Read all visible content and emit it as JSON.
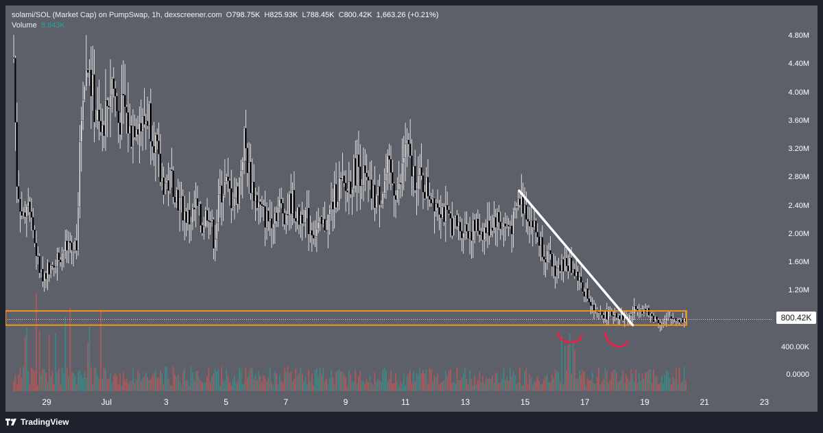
{
  "header": {
    "symbol": "solami/SOL (Market Cap) on PumpSwap, 1h, dexscreener.com",
    "open_label": "O",
    "open": "798.75K",
    "high_label": "H",
    "high": "825.93K",
    "low_label": "L",
    "low": "788.45K",
    "close_label": "C",
    "close": "800.42K",
    "change": "1,663.26 (+0.21%)",
    "volume_label": "Volume",
    "volume": "8.843K"
  },
  "price_tag": "800.42K",
  "footer": {
    "brand": "TradingView",
    "icon": "tradingview-logo-icon"
  },
  "colors": {
    "background": "#5d5f69",
    "candle": "#000000",
    "candle_border": "#ffffff",
    "volume_up": "#26a69a",
    "volume_down": "#ef5350",
    "zone": "#f7931a",
    "trendline": "#ffffff",
    "arcs": "#ff1744"
  },
  "chart_data": {
    "type": "candlestick",
    "y_ticks": [
      "4.80M",
      "4.40M",
      "4.00M",
      "3.60M",
      "3.20M",
      "2.80M",
      "2.40M",
      "2.00M",
      "1.60M",
      "1.20M",
      "400.00K",
      "0.0000"
    ],
    "x_ticks": [
      "29",
      "Jul",
      "3",
      "5",
      "7",
      "9",
      "11",
      "13",
      "15",
      "17",
      "19",
      "21",
      "23"
    ],
    "ylim": [
      0,
      4.95
    ],
    "y_unit": "M",
    "price_path": [
      [
        27.9,
        4.5
      ],
      [
        28.0,
        2.8
      ],
      [
        28.2,
        2.2
      ],
      [
        28.4,
        2.6
      ],
      [
        28.6,
        1.9
      ],
      [
        28.8,
        1.4
      ],
      [
        29.0,
        1.5
      ],
      [
        29.2,
        1.6
      ],
      [
        29.4,
        1.7
      ],
      [
        29.6,
        1.8
      ],
      [
        29.8,
        1.75
      ],
      [
        30.0,
        1.9
      ],
      [
        30.2,
        4.1
      ],
      [
        30.4,
        4.4
      ],
      [
        30.6,
        3.8
      ],
      [
        30.8,
        3.4
      ],
      [
        31.0,
        3.8
      ],
      [
        31.2,
        4.2
      ],
      [
        31.4,
        3.6
      ],
      [
        31.6,
        3.8
      ],
      [
        31.8,
        3.4
      ],
      [
        32.0,
        3.7
      ],
      [
        32.2,
        3.5
      ],
      [
        32.4,
        3.75
      ],
      [
        32.6,
        3.4
      ],
      [
        32.8,
        2.8
      ],
      [
        33.0,
        2.7
      ],
      [
        33.2,
        2.8
      ],
      [
        33.4,
        2.5
      ],
      [
        33.6,
        2.3
      ],
      [
        33.8,
        2.2
      ],
      [
        34.0,
        2.4
      ],
      [
        34.2,
        2.1
      ],
      [
        34.4,
        2.4
      ],
      [
        34.6,
        1.9
      ],
      [
        34.8,
        2.6
      ],
      [
        35.0,
        2.7
      ],
      [
        35.2,
        2.5
      ],
      [
        35.4,
        2.6
      ],
      [
        35.6,
        3.35
      ],
      [
        35.8,
        2.8
      ],
      [
        36.0,
        2.5
      ],
      [
        36.2,
        2.3
      ],
      [
        36.4,
        2.2
      ],
      [
        36.6,
        2.3
      ],
      [
        36.8,
        2.4
      ],
      [
        37.0,
        2.3
      ],
      [
        37.2,
        2.5
      ],
      [
        37.4,
        2.2
      ],
      [
        37.6,
        2.35
      ],
      [
        37.8,
        2.1
      ],
      [
        38.0,
        2.05
      ],
      [
        38.2,
        2.1
      ],
      [
        38.4,
        2.2
      ],
      [
        38.6,
        2.5
      ],
      [
        38.8,
        2.7
      ],
      [
        39.0,
        2.6
      ],
      [
        39.2,
        2.8
      ],
      [
        39.4,
        3.0
      ],
      [
        39.6,
        2.8
      ],
      [
        39.8,
        2.6
      ],
      [
        40.0,
        2.5
      ],
      [
        40.2,
        2.6
      ],
      [
        40.4,
        2.9
      ],
      [
        40.6,
        2.7
      ],
      [
        40.8,
        2.6
      ],
      [
        41.0,
        3.3
      ],
      [
        41.2,
        2.9
      ],
      [
        41.4,
        2.8
      ],
      [
        41.6,
        2.7
      ],
      [
        41.8,
        2.6
      ],
      [
        42.0,
        2.5
      ],
      [
        42.2,
        2.4
      ],
      [
        42.4,
        2.2
      ],
      [
        42.6,
        2.15
      ],
      [
        42.8,
        2.1
      ],
      [
        43.0,
        2.1
      ],
      [
        43.2,
        2.05
      ],
      [
        43.4,
        2.1
      ],
      [
        43.6,
        2.05
      ],
      [
        43.8,
        2.1
      ],
      [
        44.0,
        2.25
      ],
      [
        44.2,
        2.15
      ],
      [
        44.4,
        2.1
      ],
      [
        44.6,
        2.15
      ],
      [
        44.8,
        2.5
      ],
      [
        45.0,
        2.4
      ],
      [
        45.2,
        2.2
      ],
      [
        45.4,
        2.0
      ],
      [
        45.6,
        1.8
      ],
      [
        45.8,
        1.65
      ],
      [
        46.0,
        1.5
      ],
      [
        46.2,
        1.55
      ],
      [
        46.4,
        1.6
      ],
      [
        46.6,
        1.5
      ],
      [
        46.8,
        1.4
      ],
      [
        47.0,
        1.2
      ],
      [
        47.2,
        1.0
      ],
      [
        47.4,
        0.85
      ],
      [
        47.6,
        0.88
      ],
      [
        47.8,
        0.86
      ],
      [
        48.0,
        0.9
      ],
      [
        48.2,
        0.85
      ],
      [
        48.4,
        0.8
      ],
      [
        48.6,
        0.9
      ],
      [
        48.8,
        1.0
      ],
      [
        49.0,
        0.92
      ],
      [
        49.2,
        0.85
      ],
      [
        49.4,
        0.8
      ],
      [
        49.6,
        0.75
      ],
      [
        49.8,
        0.8
      ],
      [
        50.0,
        0.82
      ],
      [
        50.2,
        0.8
      ],
      [
        50.4,
        0.8
      ]
    ],
    "annotations": {
      "zone_low": 0.72,
      "zone_high": 0.92,
      "trendline": [
        [
          44.8,
          2.62
        ],
        [
          48.6,
          0.72
        ]
      ],
      "current_price": 0.80042
    }
  }
}
